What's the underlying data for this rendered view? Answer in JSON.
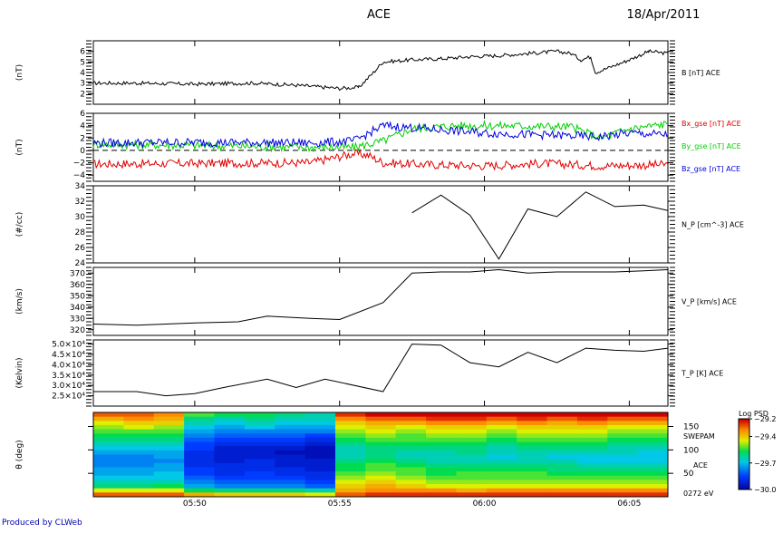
{
  "header": {
    "spacecraft": "ACE",
    "date": "18/Apr/2011"
  },
  "footer": {
    "credit": "Produced by CLWeb"
  },
  "time_axis": {
    "start": "05:46:30",
    "end": "06:06:20",
    "ticks": [
      "05:50",
      "05:55",
      "06:00",
      "06:05"
    ]
  },
  "colors": {
    "bx": "#e00000",
    "by": "#00d000",
    "bz": "#0000e0",
    "black": "#000000"
  },
  "chart_data": [
    {
      "type": "line",
      "id": "btot",
      "ylabel": "(nT)",
      "ylim": [
        1,
        7
      ],
      "yticks": [
        "2",
        "3",
        "4",
        "5",
        "6"
      ],
      "series": [
        {
          "name": "B [nT] ACE",
          "points": [
            [
              "05:46:30",
              3.0
            ],
            [
              "05:48:00",
              3.0
            ],
            [
              "05:50:00",
              2.9
            ],
            [
              "05:52:00",
              3.0
            ],
            [
              "05:53:30",
              2.8
            ],
            [
              "05:55:00",
              2.5
            ],
            [
              "05:55:40",
              2.6
            ],
            [
              "05:56:10",
              4.0
            ],
            [
              "05:56:30",
              5.0
            ],
            [
              "05:57:30",
              5.2
            ],
            [
              "05:58:30",
              5.3
            ],
            [
              "05:59:30",
              5.5
            ],
            [
              "06:00:30",
              5.6
            ],
            [
              "06:01:30",
              5.8
            ],
            [
              "06:02:30",
              6.0
            ],
            [
              "06:03:00",
              5.8
            ],
            [
              "06:03:20",
              5.2
            ],
            [
              "06:03:40",
              5.5
            ],
            [
              "06:03:50",
              4.0
            ],
            [
              "06:04:20",
              4.5
            ],
            [
              "06:05:00",
              5.2
            ],
            [
              "06:05:40",
              6.0
            ],
            [
              "06:06:20",
              5.8
            ]
          ]
        }
      ]
    },
    {
      "type": "line",
      "id": "bgse",
      "ylabel": "(nT)",
      "ylim": [
        -5,
        6
      ],
      "yticks": [
        "−4",
        "−2",
        "0",
        "2",
        "4",
        "6"
      ],
      "series": [
        {
          "name": "Bx_gse [nT] ACE",
          "color": "#e00000",
          "points": [
            [
              "05:46:30",
              -2.2
            ],
            [
              "05:50:00",
              -2.1
            ],
            [
              "05:54:00",
              -2.0
            ],
            [
              "05:55:30",
              -0.5
            ],
            [
              "05:56:00",
              -0.8
            ],
            [
              "05:56:30",
              -2.0
            ],
            [
              "05:58:00",
              -2.3
            ],
            [
              "06:00:00",
              -2.5
            ],
            [
              "06:02:00",
              -2.1
            ],
            [
              "06:04:00",
              -2.5
            ],
            [
              "06:06:20",
              -2.3
            ]
          ]
        },
        {
          "name": "By_gse [nT] ACE",
          "color": "#00d000",
          "points": [
            [
              "05:46:30",
              1.0
            ],
            [
              "05:50:00",
              0.8
            ],
            [
              "05:54:00",
              0.5
            ],
            [
              "05:55:30",
              0.5
            ],
            [
              "05:56:30",
              1.5
            ],
            [
              "05:57:30",
              3.5
            ],
            [
              "05:59:00",
              4.0
            ],
            [
              "06:01:00",
              4.0
            ],
            [
              "06:03:00",
              3.8
            ],
            [
              "06:04:00",
              2.0
            ],
            [
              "06:05:00",
              3.5
            ],
            [
              "06:06:20",
              4.3
            ]
          ]
        },
        {
          "name": "Bz_gse [nT] ACE",
          "color": "#0000e0",
          "points": [
            [
              "05:46:30",
              1.2
            ],
            [
              "05:50:00",
              1.3
            ],
            [
              "05:54:00",
              1.2
            ],
            [
              "05:55:30",
              1.5
            ],
            [
              "05:56:30",
              4.0
            ],
            [
              "05:58:00",
              3.5
            ],
            [
              "06:00:00",
              2.8
            ],
            [
              "06:02:00",
              2.5
            ],
            [
              "06:04:00",
              2.2
            ],
            [
              "06:05:00",
              2.8
            ],
            [
              "06:06:20",
              2.5
            ]
          ]
        }
      ]
    },
    {
      "type": "line",
      "id": "np",
      "ylabel": "(#/cc)",
      "ylim": [
        24,
        34
      ],
      "yticks": [
        "24",
        "26",
        "28",
        "30",
        "32",
        "34"
      ],
      "series": [
        {
          "name": "N_P [cm^-3] ACE",
          "points": [
            [
              "05:57:30",
              30.5
            ],
            [
              "05:58:30",
              32.8
            ],
            [
              "05:59:30",
              30.2
            ],
            [
              "06:00:30",
              24.5
            ],
            [
              "06:01:30",
              31.0
            ],
            [
              "06:02:30",
              30.0
            ],
            [
              "06:03:30",
              33.2
            ],
            [
              "06:04:30",
              31.3
            ],
            [
              "06:05:30",
              31.5
            ],
            [
              "06:06:20",
              30.8
            ]
          ]
        }
      ]
    },
    {
      "type": "line",
      "id": "vp",
      "ylabel": "(km/s)",
      "ylim": [
        315,
        375
      ],
      "yticks": [
        "320",
        "330",
        "340",
        "350",
        "360",
        "370"
      ],
      "series": [
        {
          "name": "V_P [km/s] ACE",
          "points": [
            [
              "05:46:30",
              325
            ],
            [
              "05:48:00",
              324
            ],
            [
              "05:50:00",
              326
            ],
            [
              "05:51:30",
              327
            ],
            [
              "05:52:30",
              332
            ],
            [
              "05:54:00",
              330
            ],
            [
              "05:55:00",
              329
            ],
            [
              "05:56:30",
              344
            ],
            [
              "05:57:30",
              370
            ],
            [
              "05:58:30",
              371
            ],
            [
              "05:59:30",
              371
            ],
            [
              "06:00:30",
              373
            ],
            [
              "06:01:30",
              370
            ],
            [
              "06:02:30",
              371
            ],
            [
              "06:03:30",
              371
            ],
            [
              "06:04:30",
              371
            ],
            [
              "06:05:30",
              372
            ],
            [
              "06:06:20",
              373
            ]
          ]
        }
      ]
    },
    {
      "type": "line",
      "id": "tp",
      "ylabel": "(Kelvin)",
      "ylim": [
        20000,
        52000
      ],
      "yticks": [
        "2.5×10⁴",
        "3.0×10⁴",
        "3.5×10⁴",
        "4.0×10⁴",
        "4.5×10⁴",
        "5.0×10⁴"
      ],
      "yticks_values": [
        25000,
        30000,
        35000,
        40000,
        45000,
        50000
      ],
      "series": [
        {
          "name": "T_P [K] ACE",
          "points": [
            [
              "05:46:30",
              27000
            ],
            [
              "05:48:00",
              27000
            ],
            [
              "05:49:00",
              25000
            ],
            [
              "05:50:00",
              26000
            ],
            [
              "05:51:00",
              29000
            ],
            [
              "05:52:30",
              33000
            ],
            [
              "05:53:30",
              29000
            ],
            [
              "05:54:30",
              33000
            ],
            [
              "05:56:30",
              27000
            ],
            [
              "05:57:30",
              50000
            ],
            [
              "05:58:30",
              49500
            ],
            [
              "05:59:30",
              41000
            ],
            [
              "06:00:30",
              39000
            ],
            [
              "06:01:30",
              46000
            ],
            [
              "06:02:30",
              41000
            ],
            [
              "06:03:30",
              48000
            ],
            [
              "06:04:30",
              47000
            ],
            [
              "06:05:30",
              46500
            ],
            [
              "06:06:20",
              48000
            ]
          ]
        }
      ]
    },
    {
      "type": "heatmap",
      "id": "swepam",
      "ylabel": "θ (deg)",
      "ylim": [
        0,
        180
      ],
      "yticks": [
        "50",
        "100",
        "150"
      ],
      "instrument": "SWEPAM",
      "spacecraft": "ACE",
      "energy": "0272 eV",
      "colorbar": {
        "title": "Log PSD",
        "ticks": [
          "−29.2",
          "−29.4",
          "−29.7",
          "−30.0"
        ],
        "range": [
          -30.0,
          -29.2
        ]
      },
      "columns": 19,
      "rows": 20,
      "values": [
        [
          0.9,
          0.9,
          0.85,
          0.6,
          0.55,
          0.55,
          0.5,
          0.45,
          0.95,
          1.0,
          1.0,
          1.0,
          1.0,
          1.0,
          1.0,
          1.0,
          1.0,
          1.0,
          1.0
        ],
        [
          0.8,
          0.85,
          0.8,
          0.5,
          0.45,
          0.5,
          0.45,
          0.45,
          0.85,
          0.9,
          0.9,
          0.95,
          0.95,
          0.9,
          0.95,
          0.9,
          0.95,
          0.9,
          0.9
        ],
        [
          0.7,
          0.75,
          0.75,
          0.45,
          0.4,
          0.45,
          0.4,
          0.4,
          0.75,
          0.8,
          0.8,
          0.85,
          0.85,
          0.8,
          0.85,
          0.8,
          0.85,
          0.8,
          0.8
        ],
        [
          0.65,
          0.7,
          0.65,
          0.4,
          0.35,
          0.4,
          0.35,
          0.35,
          0.7,
          0.75,
          0.7,
          0.75,
          0.75,
          0.7,
          0.75,
          0.75,
          0.75,
          0.7,
          0.7
        ],
        [
          0.6,
          0.6,
          0.6,
          0.35,
          0.3,
          0.3,
          0.3,
          0.3,
          0.65,
          0.7,
          0.65,
          0.7,
          0.7,
          0.65,
          0.7,
          0.7,
          0.7,
          0.65,
          0.65
        ],
        [
          0.55,
          0.55,
          0.55,
          0.3,
          0.25,
          0.25,
          0.25,
          0.2,
          0.6,
          0.65,
          0.6,
          0.65,
          0.65,
          0.6,
          0.65,
          0.65,
          0.65,
          0.6,
          0.6
        ],
        [
          0.5,
          0.5,
          0.5,
          0.25,
          0.2,
          0.2,
          0.2,
          0.15,
          0.55,
          0.6,
          0.6,
          0.6,
          0.6,
          0.55,
          0.6,
          0.6,
          0.6,
          0.55,
          0.55
        ],
        [
          0.45,
          0.45,
          0.45,
          0.2,
          0.15,
          0.15,
          0.15,
          0.1,
          0.5,
          0.55,
          0.55,
          0.55,
          0.55,
          0.5,
          0.55,
          0.55,
          0.55,
          0.5,
          0.5
        ],
        [
          0.4,
          0.4,
          0.4,
          0.2,
          0.1,
          0.1,
          0.1,
          0.05,
          0.45,
          0.5,
          0.5,
          0.5,
          0.5,
          0.45,
          0.5,
          0.5,
          0.5,
          0.45,
          0.45
        ],
        [
          0.35,
          0.35,
          0.35,
          0.15,
          0.1,
          0.1,
          0.05,
          0.05,
          0.45,
          0.5,
          0.45,
          0.45,
          0.5,
          0.45,
          0.45,
          0.45,
          0.45,
          0.45,
          0.4
        ],
        [
          0.3,
          0.3,
          0.35,
          0.15,
          0.1,
          0.1,
          0.1,
          0.05,
          0.45,
          0.5,
          0.45,
          0.45,
          0.45,
          0.4,
          0.45,
          0.4,
          0.4,
          0.4,
          0.4
        ],
        [
          0.3,
          0.3,
          0.3,
          0.15,
          0.1,
          0.15,
          0.1,
          0.1,
          0.5,
          0.55,
          0.5,
          0.45,
          0.45,
          0.45,
          0.45,
          0.45,
          0.4,
          0.4,
          0.4
        ],
        [
          0.3,
          0.3,
          0.35,
          0.15,
          0.15,
          0.15,
          0.1,
          0.1,
          0.55,
          0.6,
          0.55,
          0.5,
          0.5,
          0.5,
          0.5,
          0.5,
          0.45,
          0.45,
          0.45
        ],
        [
          0.35,
          0.35,
          0.35,
          0.2,
          0.15,
          0.15,
          0.15,
          0.1,
          0.55,
          0.6,
          0.6,
          0.55,
          0.55,
          0.55,
          0.55,
          0.5,
          0.5,
          0.5,
          0.5
        ],
        [
          0.35,
          0.35,
          0.4,
          0.2,
          0.15,
          0.2,
          0.15,
          0.15,
          0.6,
          0.65,
          0.6,
          0.55,
          0.6,
          0.6,
          0.6,
          0.55,
          0.55,
          0.55,
          0.55
        ],
        [
          0.4,
          0.4,
          0.4,
          0.25,
          0.2,
          0.2,
          0.2,
          0.15,
          0.65,
          0.7,
          0.65,
          0.6,
          0.6,
          0.6,
          0.6,
          0.6,
          0.6,
          0.6,
          0.6
        ],
        [
          0.45,
          0.45,
          0.45,
          0.3,
          0.25,
          0.25,
          0.25,
          0.2,
          0.7,
          0.75,
          0.7,
          0.65,
          0.65,
          0.65,
          0.65,
          0.65,
          0.65,
          0.65,
          0.65
        ],
        [
          0.5,
          0.5,
          0.55,
          0.35,
          0.3,
          0.3,
          0.3,
          0.25,
          0.75,
          0.8,
          0.75,
          0.7,
          0.7,
          0.7,
          0.7,
          0.7,
          0.7,
          0.7,
          0.7
        ],
        [
          0.7,
          0.7,
          0.7,
          0.55,
          0.5,
          0.5,
          0.5,
          0.45,
          0.8,
          0.85,
          0.85,
          0.85,
          0.8,
          0.85,
          0.85,
          0.85,
          0.85,
          0.85,
          0.85
        ],
        [
          0.9,
          0.9,
          0.9,
          0.8,
          0.75,
          0.75,
          0.75,
          0.7,
          0.9,
          0.95,
          0.95,
          0.95,
          0.95,
          0.95,
          0.95,
          0.95,
          0.95,
          0.95,
          0.95
        ]
      ]
    }
  ]
}
